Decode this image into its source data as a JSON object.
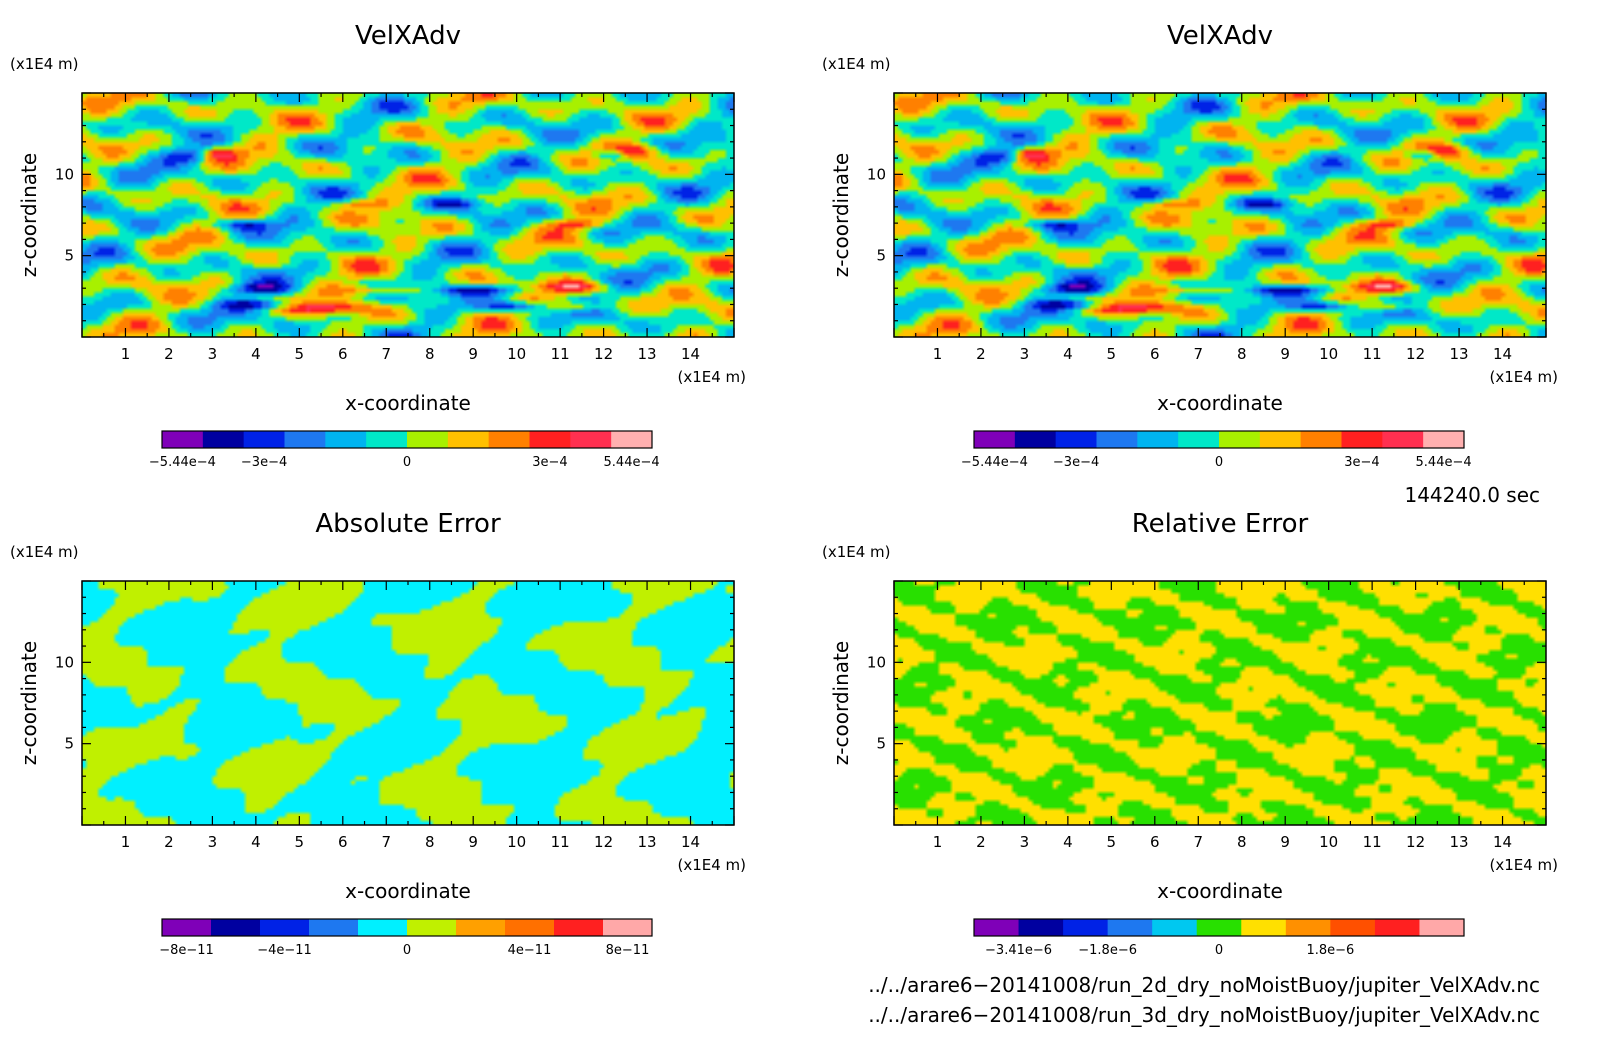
{
  "chart_data": [
    {
      "type": "heatmap",
      "title": "VelXAdv",
      "xlabel": "x-coordinate",
      "ylabel": "z-coordinate",
      "xunit": "(x1E4 m)",
      "yunit": "(x1E4 m)",
      "xlim": [
        0,
        15
      ],
      "ylim": [
        0,
        15
      ],
      "xticks": [
        "1",
        "2",
        "3",
        "4",
        "5",
        "6",
        "7",
        "8",
        "9",
        "10",
        "11",
        "12",
        "13",
        "14"
      ],
      "yticks": [
        "5",
        "10"
      ],
      "colorbar": {
        "colors": [
          "#7f00b8",
          "#0000a0",
          "#0022e6",
          "#1e78f0",
          "#00b4f0",
          "#00e8c8",
          "#a8f000",
          "#ffc000",
          "#ff8000",
          "#ff2020",
          "#ff3050",
          "#ffb0b0"
        ],
        "ticks": [
          "−5.44e−4",
          "−3e−4",
          "0",
          "3e−4",
          "5.44e−4"
        ]
      },
      "pattern": "velocity"
    },
    {
      "type": "heatmap",
      "title": "VelXAdv",
      "xlabel": "x-coordinate",
      "ylabel": "z-coordinate",
      "xunit": "(x1E4 m)",
      "yunit": "(x1E4 m)",
      "xlim": [
        0,
        15
      ],
      "ylim": [
        0,
        15
      ],
      "xticks": [
        "1",
        "2",
        "3",
        "4",
        "5",
        "6",
        "7",
        "8",
        "9",
        "10",
        "11",
        "12",
        "13",
        "14"
      ],
      "yticks": [
        "5",
        "10"
      ],
      "colorbar": {
        "colors": [
          "#7f00b8",
          "#0000a0",
          "#0022e6",
          "#1e78f0",
          "#00b4f0",
          "#00e8c8",
          "#a8f000",
          "#ffc000",
          "#ff8000",
          "#ff2020",
          "#ff3050",
          "#ffb0b0"
        ],
        "ticks": [
          "−5.44e−4",
          "−3e−4",
          "0",
          "3e−4",
          "5.44e−4"
        ]
      },
      "pattern": "velocity"
    },
    {
      "type": "heatmap",
      "title": "Absolute Error",
      "xlabel": "x-coordinate",
      "ylabel": "z-coordinate",
      "xunit": "(x1E4 m)",
      "yunit": "(x1E4 m)",
      "xlim": [
        0,
        15
      ],
      "ylim": [
        0,
        15
      ],
      "xticks": [
        "1",
        "2",
        "3",
        "4",
        "5",
        "6",
        "7",
        "8",
        "9",
        "10",
        "11",
        "12",
        "13",
        "14"
      ],
      "yticks": [
        "5",
        "10"
      ],
      "colorbar": {
        "colors": [
          "#7f00b8",
          "#0000a0",
          "#0022e6",
          "#1e78f0",
          "#00f0ff",
          "#c0f000",
          "#ffa000",
          "#ff7000",
          "#ff2020",
          "#ffa8a8"
        ],
        "ticks": [
          "−8e−11",
          "−4e−11",
          "0",
          "4e−11",
          "8e−11"
        ]
      },
      "pattern": "abs"
    },
    {
      "type": "heatmap",
      "title": "Relative Error",
      "xlabel": "x-coordinate",
      "ylabel": "z-coordinate",
      "xunit": "(x1E4 m)",
      "yunit": "(x1E4 m)",
      "xlim": [
        0,
        15
      ],
      "ylim": [
        0,
        15
      ],
      "xticks": [
        "1",
        "2",
        "3",
        "4",
        "5",
        "6",
        "7",
        "8",
        "9",
        "10",
        "11",
        "12",
        "13",
        "14"
      ],
      "yticks": [
        "5",
        "10"
      ],
      "colorbar": {
        "colors": [
          "#7f00b8",
          "#0000a0",
          "#0022e6",
          "#1e78f0",
          "#00c8f0",
          "#28e000",
          "#ffe000",
          "#ff9000",
          "#ff5000",
          "#ff2020",
          "#ffa8a8"
        ],
        "ticks": [
          "−3.41e−6",
          "−1.8e−6",
          "0",
          "1.8e−6"
        ]
      },
      "pattern": "rel"
    }
  ],
  "time_label": "144240.0 sec",
  "file_lines": [
    "../../arare6−20141008/run_2d_dry_noMoistBuoy/jupiter_VelXAdv.nc",
    "../../arare6−20141008/run_3d_dry_noMoistBuoy/jupiter_VelXAdv.nc"
  ]
}
